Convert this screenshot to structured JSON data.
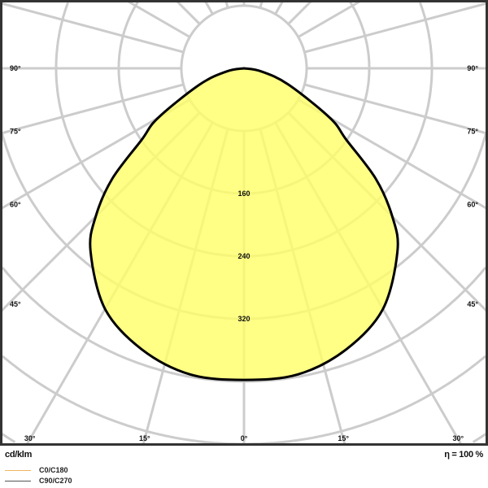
{
  "chart_data": {
    "type": "polar",
    "unit_label": "cd/klm",
    "efficiency_label": "η = 100 %",
    "radial_max": 640,
    "radial_step": 80,
    "ring_labels": [
      "160",
      "240",
      "320"
    ],
    "ring_label_values": [
      160,
      240,
      320
    ],
    "angle_step_deg": 15,
    "angle_labels_side": [
      {
        "deg": 90,
        "text": "90°"
      },
      {
        "deg": 75,
        "text": "75°"
      },
      {
        "deg": 60,
        "text": "60°"
      },
      {
        "deg": 45,
        "text": "45°"
      }
    ],
    "angle_labels_bottom": [
      {
        "deg": -30,
        "text": "30°"
      },
      {
        "deg": -15,
        "text": "15°"
      },
      {
        "deg": 0,
        "text": "0°"
      },
      {
        "deg": 15,
        "text": "15°"
      },
      {
        "deg": 30,
        "text": "30°"
      }
    ],
    "series": [
      {
        "name": "C90/C270",
        "gamma_deg": [
          0,
          10,
          20,
          30,
          40,
          45,
          50,
          55,
          60,
          70,
          80,
          90
        ],
        "intensity": [
          398,
          397,
          382,
          355,
          305,
          268,
          220,
          160,
          127,
          60,
          22,
          0
        ]
      }
    ],
    "legend": [
      {
        "label": "C0/C180",
        "color": "#f0b560"
      },
      {
        "label": "C90/C270",
        "color": "#555555"
      }
    ],
    "colors": {
      "fill": "#ffff66",
      "outline": "#000000",
      "grid": "#cccccc",
      "frame": "#333333"
    },
    "legend_position": "bottom-left"
  }
}
